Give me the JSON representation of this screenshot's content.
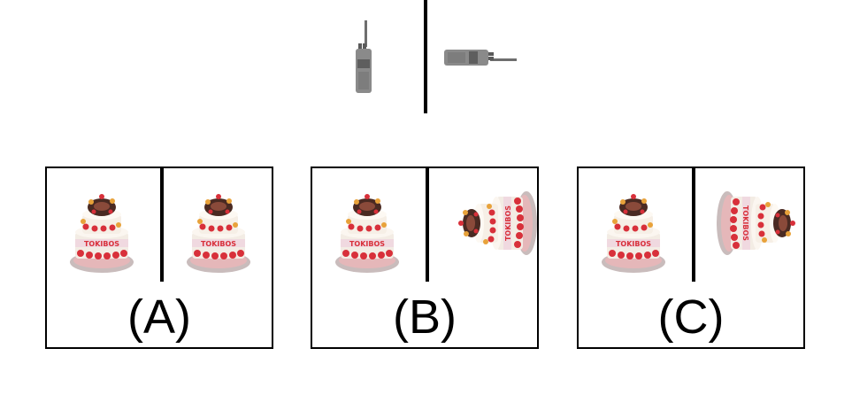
{
  "reference": {
    "left_item": "walkie-talkie-upright",
    "right_item": "walkie-talkie-rotated-90-clockwise"
  },
  "options": [
    {
      "label": "(A)",
      "left_item": "cake-upright",
      "right_item": "cake-upright"
    },
    {
      "label": "(B)",
      "left_item": "cake-upright",
      "right_item": "cake-rotated-counterclockwise"
    },
    {
      "label": "(C)",
      "left_item": "cake-upright",
      "right_item": "cake-rotated-clockwise"
    }
  ],
  "colors": {
    "line": "#000000",
    "radio": "#7a7a7a",
    "cake_frosting": "#f3ece4",
    "cake_red": "#d8303a",
    "cake_base": "#b0a7a4"
  }
}
